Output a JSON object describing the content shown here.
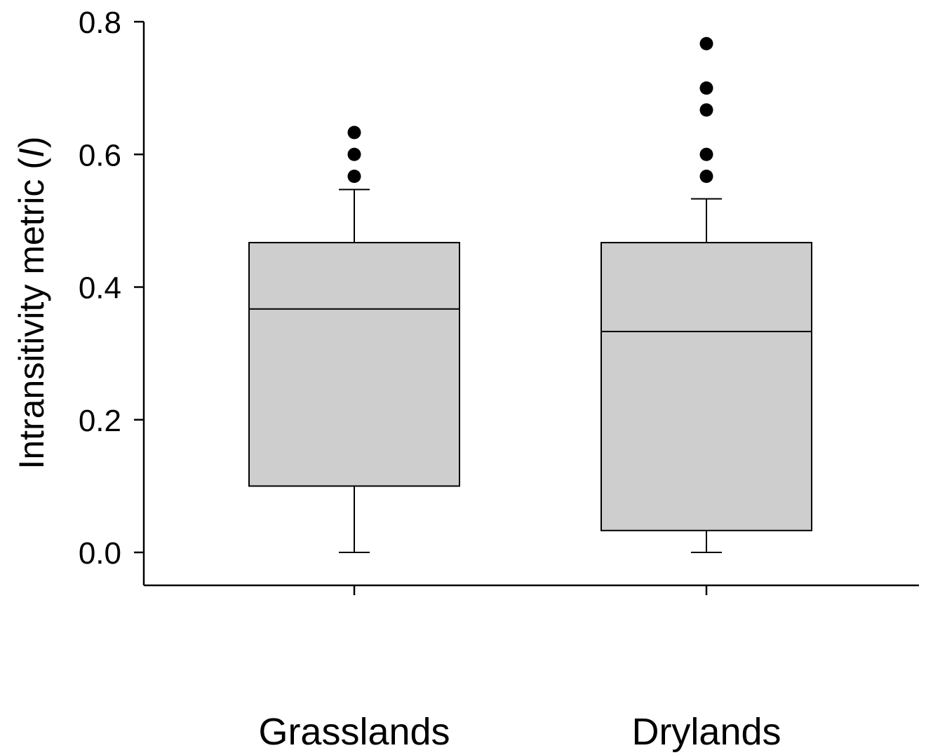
{
  "chart_data": {
    "type": "box",
    "ylabel_text": "Intransitivity metric (",
    "ylabel_symbol": "I",
    "ylabel_close": ")",
    "xlabel": "",
    "ylim": [
      -0.05,
      0.8
    ],
    "yticks": [
      0.0,
      0.2,
      0.4,
      0.6,
      0.8
    ],
    "ytick_labels": [
      "0.0",
      "0.2",
      "0.4",
      "0.6",
      "0.8"
    ],
    "categories": [
      "Grasslands",
      "Drylands"
    ],
    "box_fill": "#cecece",
    "line_color": "#000000",
    "series": [
      {
        "category": "Grasslands",
        "whisker_low": 0.0,
        "q1": 0.1,
        "median": 0.367,
        "q3": 0.467,
        "whisker_high": 0.547,
        "outliers": [
          0.567,
          0.6,
          0.633
        ]
      },
      {
        "category": "Drylands",
        "whisker_low": 0.0,
        "q1": 0.033,
        "median": 0.333,
        "q3": 0.467,
        "whisker_high": 0.533,
        "outliers": [
          0.567,
          0.6,
          0.667,
          0.7,
          0.767
        ]
      }
    ]
  }
}
